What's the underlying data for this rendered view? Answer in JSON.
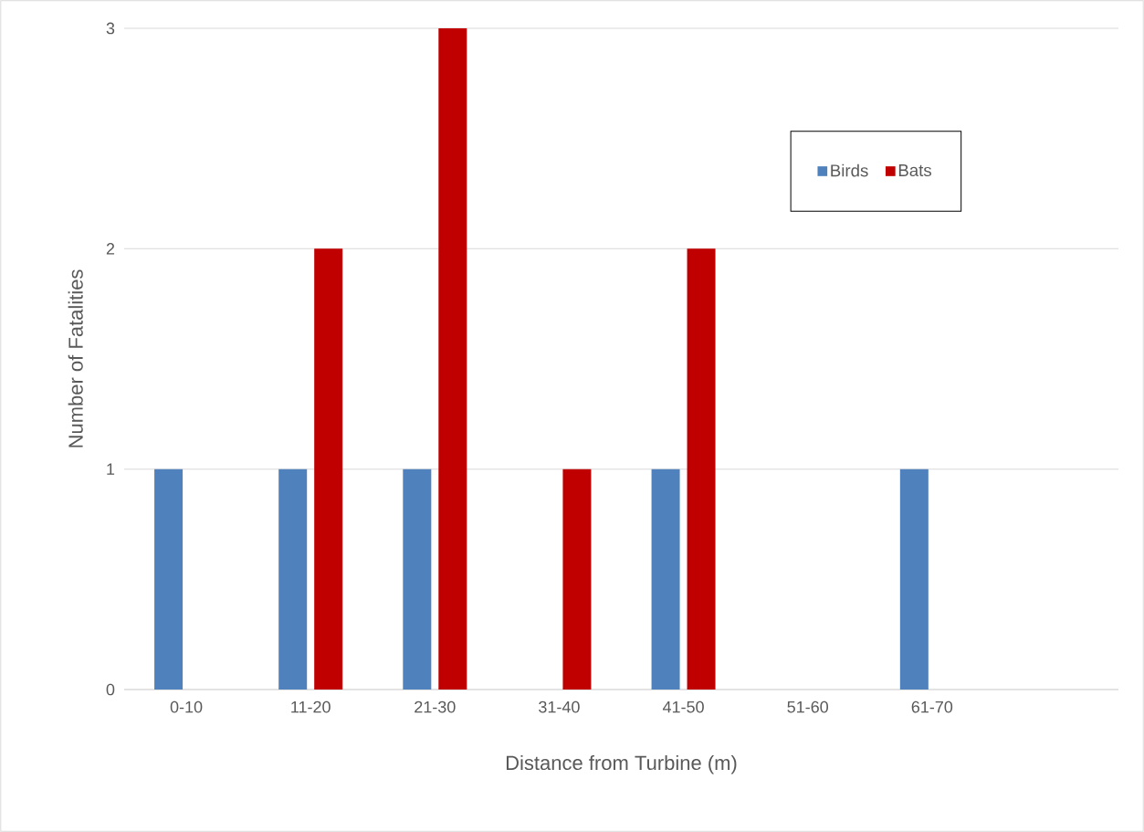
{
  "chart_data": {
    "type": "bar",
    "xlabel": "Distance from Turbine (m)",
    "ylabel": "Number of Fatalities",
    "categories": [
      "0-10",
      "11-20",
      "21-30",
      "31-40",
      "41-50",
      "51-60",
      "61-70",
      null
    ],
    "series": [
      {
        "name": "Birds",
        "color": "#4f81bd",
        "values": [
          1,
          1,
          1,
          0,
          1,
          0,
          1,
          0
        ]
      },
      {
        "name": "Bats",
        "color": "#c00000",
        "values": [
          0,
          2,
          3,
          1,
          2,
          0,
          0,
          0
        ]
      }
    ],
    "ylim": [
      0,
      3
    ],
    "yticks": [
      0,
      1,
      2,
      3
    ],
    "grid": "y",
    "legend": "top right"
  }
}
